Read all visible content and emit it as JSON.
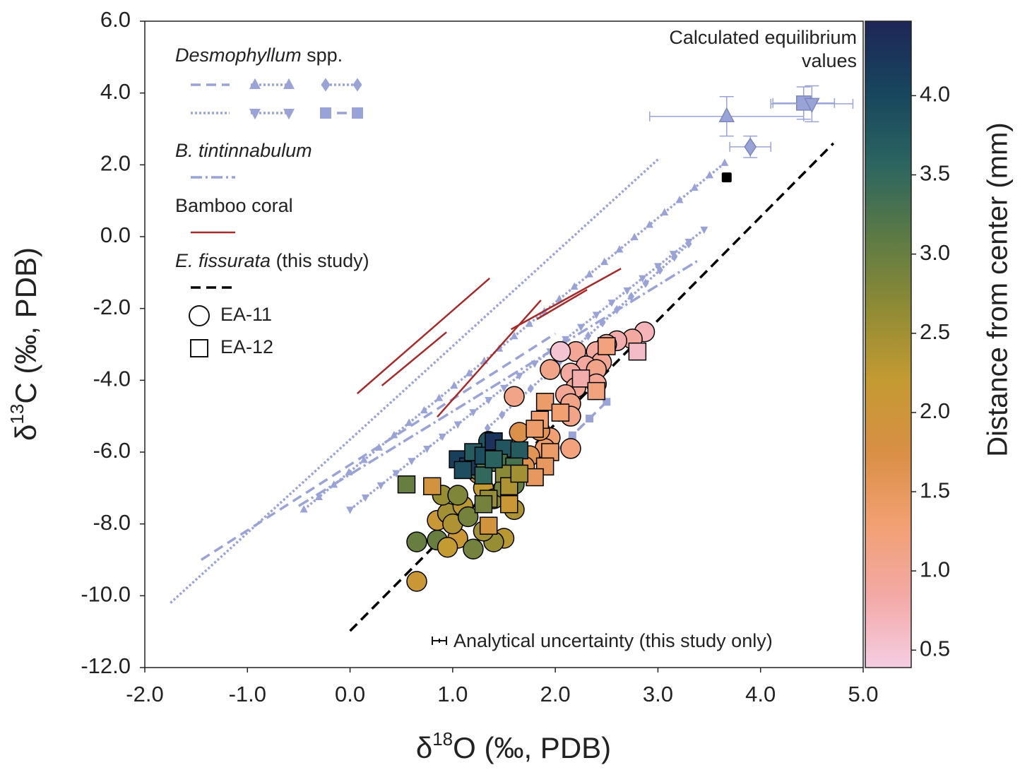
{
  "chart_data": {
    "type": "scatter",
    "xlabel": {
      "pre": "δ",
      "sup": "18",
      "post": "O (‰, PDB)"
    },
    "ylabel": {
      "pre": "δ",
      "sup": "13",
      "post": "C (‰, PDB)"
    },
    "xlim": [
      -2,
      5
    ],
    "ylim": [
      -12,
      6
    ],
    "xticks": [
      {
        "value": -2,
        "label": "-2.0"
      },
      {
        "value": -1,
        "label": "-1.0"
      },
      {
        "value": 0,
        "label": "0.0"
      },
      {
        "value": 1,
        "label": "1.0"
      },
      {
        "value": 2,
        "label": "2.0"
      },
      {
        "value": 3,
        "label": "3.0"
      },
      {
        "value": 4,
        "label": "4.0"
      },
      {
        "value": 5,
        "label": "5.0"
      }
    ],
    "yticks": [
      {
        "value": -12,
        "label": "-12.0"
      },
      {
        "value": -10,
        "label": "-10.0"
      },
      {
        "value": -8,
        "label": "-8.0"
      },
      {
        "value": -6,
        "label": "-6.0"
      },
      {
        "value": -4,
        "label": "-4.0"
      },
      {
        "value": -2,
        "label": "-2.0"
      },
      {
        "value": 0,
        "label": "0.0"
      },
      {
        "value": 2,
        "label": "2.0"
      },
      {
        "value": 4,
        "label": "4.0"
      },
      {
        "value": 6,
        "label": "6.0"
      }
    ],
    "colorbar": {
      "label": "Distance from center (mm)",
      "clim": [
        0.39,
        4.47
      ],
      "ticks": [
        0.5,
        {
          "value": 1,
          "label": "1.0"
        },
        1.5,
        {
          "value": 2,
          "label": "2.0"
        },
        2.5,
        {
          "value": 3,
          "label": "3.0"
        },
        3.5,
        {
          "value": 4,
          "label": "4.0"
        }
      ],
      "colormap": [
        "#f5cde2",
        "#f3a9a6",
        "#f2a072",
        "#d98f45",
        "#c49a32",
        "#8f8b35",
        "#5c7a45",
        "#2c6560",
        "#17465e",
        "#1e2657"
      ]
    },
    "legend_groups": [
      {
        "italic": "Desmophyllum",
        "text": " spp.",
        "lines": [
          {
            "color": "#9aa3d6",
            "style": "dashed",
            "marker": null,
            "x": [
              -1.45,
              2.0
            ],
            "y": [
              -9.0,
              -2.7
            ]
          },
          {
            "color": "#9aa3d6",
            "style": "dotted",
            "marker": "triangle-up",
            "x": [
              -0.45,
              3.65
            ],
            "y": [
              -7.6,
              2.05
            ]
          },
          {
            "color": "#9aa3d6",
            "style": "dotted",
            "marker": "diamond",
            "x": [
              1.34,
              3.3
            ],
            "y": [
              -5.33,
              -0.2
            ]
          },
          {
            "color": "#9aa3d6",
            "style": "dotted",
            "marker": null,
            "x": [
              -1.75,
              3.0
            ],
            "y": [
              -10.2,
              2.15
            ]
          },
          {
            "color": "#9aa3d6",
            "style": "dotted",
            "marker": "triangle-down",
            "x": [
              0.0,
              3.45
            ],
            "y": [
              -7.6,
              0.2
            ]
          },
          {
            "color": "#9aa3d6",
            "style": "dashed",
            "marker": "square",
            "x": [
              2.0,
              2.5
            ],
            "y": [
              -6.0,
              -4.6
            ]
          }
        ]
      },
      {
        "italic": "B. tintinnabulum",
        "text": "",
        "lines": [
          {
            "color": "#9aa3d6",
            "style": "dashdot",
            "marker": null,
            "x": [
              -0.5,
              3.4
            ],
            "y": [
              -7.5,
              -0.65
            ]
          }
        ]
      },
      {
        "italic": "",
        "text": "Bamboo coral",
        "lines": [
          {
            "color": "#a52a2a",
            "style": "solid",
            "marker": null,
            "x": [
              0.07,
              1.36
            ],
            "y": [
              -4.37,
              -1.16
            ]
          },
          {
            "color": "#a52a2a",
            "style": "solid",
            "marker": null,
            "x": [
              0.31,
              0.94
            ],
            "y": [
              -4.15,
              -2.66
            ]
          },
          {
            "color": "#a52a2a",
            "style": "solid",
            "marker": null,
            "x": [
              0.85,
              1.86
            ],
            "y": [
              -5.02,
              -1.77
            ]
          },
          {
            "color": "#a52a2a",
            "style": "solid",
            "marker": null,
            "x": [
              1.57,
              2.64
            ],
            "y": [
              -2.58,
              -0.89
            ]
          },
          {
            "color": "#a52a2a",
            "style": "solid",
            "marker": null,
            "x": [
              1.82,
              2.31
            ],
            "y": [
              -2.3,
              -1.48
            ]
          }
        ]
      },
      {
        "italic": "E. fissurata",
        "text": " (this study)",
        "lines": [
          {
            "color": "#000000",
            "style": "dashed",
            "marker": null,
            "x": [
              0.0,
              4.71
            ],
            "y": [
              -10.98,
              2.6
            ]
          }
        ]
      }
    ],
    "series": [
      {
        "name": "EA-11",
        "marker": "circle",
        "x": [
          2.87,
          2.75,
          2.6,
          2.5,
          2.4,
          2.2,
          2.05,
          2.45,
          2.3,
          2.4,
          1.95,
          2.15,
          2.4,
          2.2,
          1.6,
          2.1,
          2.15,
          2.15,
          2.15,
          1.95,
          1.9,
          1.85,
          1.75,
          1.65,
          0.65,
          0.65,
          0.85,
          1.05,
          0.95,
          1.2,
          1.5,
          1.4,
          0.85,
          0.95,
          1.1,
          0.9,
          1.05,
          1.3,
          1.4,
          1.6,
          1.25,
          1.1,
          1.0,
          1.3,
          1.6,
          1.35,
          1.4,
          1.25,
          1.15,
          1.5,
          1.7,
          1.55
        ],
        "y": [
          -2.65,
          -2.85,
          -2.9,
          -3.0,
          -3.2,
          -3.2,
          -3.2,
          -3.5,
          -3.6,
          -3.7,
          -3.7,
          -3.8,
          -4.1,
          -4.2,
          -4.45,
          -4.4,
          -4.65,
          -5.0,
          -5.9,
          -5.6,
          -5.9,
          -5.4,
          -6.1,
          -5.45,
          -9.6,
          -8.5,
          -8.45,
          -8.4,
          -8.65,
          -8.7,
          -8.4,
          -8.5,
          -7.9,
          -7.7,
          -7.5,
          -7.2,
          -7.2,
          -7.0,
          -7.3,
          -7.6,
          -6.6,
          -6.3,
          -8.0,
          -8.2,
          -6.9,
          -5.7,
          -6.0,
          -6.5,
          -7.8,
          -7.0,
          -6.4,
          -6.2
        ],
        "values": [
          0.7,
          0.9,
          0.8,
          1.0,
          0.9,
          1.0,
          0.5,
          1.0,
          0.9,
          1.1,
          1.1,
          0.9,
          1.0,
          1.0,
          1.1,
          1.0,
          1.1,
          1.1,
          1.2,
          1.3,
          1.4,
          1.6,
          1.6,
          1.7,
          2.1,
          3.0,
          3.0,
          2.1,
          2.2,
          2.9,
          2.3,
          2.6,
          2.1,
          2.5,
          2.3,
          2.6,
          2.8,
          2.2,
          2.7,
          2.4,
          2.0,
          1.9,
          2.4,
          2.5,
          3.0,
          3.8,
          2.1,
          3.2,
          2.9,
          2.9,
          1.7,
          1.8
        ]
      },
      {
        "name": "EA-12",
        "marker": "square",
        "x": [
          2.8,
          2.5,
          2.25,
          2.4,
          1.9,
          2.05,
          1.85,
          1.8,
          1.95,
          1.9,
          1.8,
          1.6,
          0.55,
          0.8,
          1.05,
          1.15,
          1.2,
          1.3,
          1.4,
          1.5,
          1.45,
          1.65,
          1.6,
          1.3,
          1.5,
          1.55,
          1.35,
          1.55,
          1.3,
          1.35,
          1.65,
          1.4,
          1.1
        ],
        "y": [
          -3.2,
          -3.05,
          -3.95,
          -4.3,
          -4.6,
          -4.9,
          -5.1,
          -5.35,
          -6.0,
          -6.4,
          -6.7,
          -6.5,
          -6.9,
          -6.95,
          -6.2,
          -6.4,
          -6.0,
          -6.1,
          -5.7,
          -5.9,
          -6.3,
          -5.95,
          -6.4,
          -6.65,
          -6.6,
          -6.95,
          -7.3,
          -7.45,
          -7.45,
          -8.05,
          -6.6,
          -6.2,
          -6.5
        ],
        "values": [
          0.6,
          1.2,
          0.8,
          1.2,
          1.4,
          1.3,
          1.3,
          1.4,
          1.4,
          1.5,
          1.5,
          1.7,
          3.0,
          1.9,
          4.1,
          4.2,
          3.7,
          3.9,
          4.3,
          3.8,
          3.3,
          3.7,
          3.3,
          3.5,
          2.7,
          2.4,
          2.6,
          2.1,
          2.9,
          1.9,
          2.5,
          3.6,
          3.9
        ]
      }
    ],
    "equilibrium": {
      "color": "#9aa3d6",
      "points": [
        {
          "marker": "triangle-up",
          "x": 3.67,
          "y": 3.35,
          "xerr": 0.75,
          "yerr": 0.55
        },
        {
          "marker": "square",
          "x": 4.42,
          "y": 3.72,
          "xerr": 0.3,
          "yerr": 0.45
        },
        {
          "marker": "triangle-down",
          "x": 4.5,
          "y": 3.7,
          "xerr": 0.4,
          "yerr": 0.5
        },
        {
          "marker": "diamond",
          "x": 3.9,
          "y": 2.5,
          "xerr": 0.2,
          "yerr": 0.3
        }
      ]
    },
    "bamboo_equilibrium": {
      "marker": "square",
      "color": "#000000",
      "x": 3.67,
      "y": 1.65
    },
    "annotations": {
      "equilibrium_1": "Calculated equilibrium",
      "equilibrium_2": "values",
      "uncertainty": "Analytical uncertainty (this study only)"
    }
  }
}
